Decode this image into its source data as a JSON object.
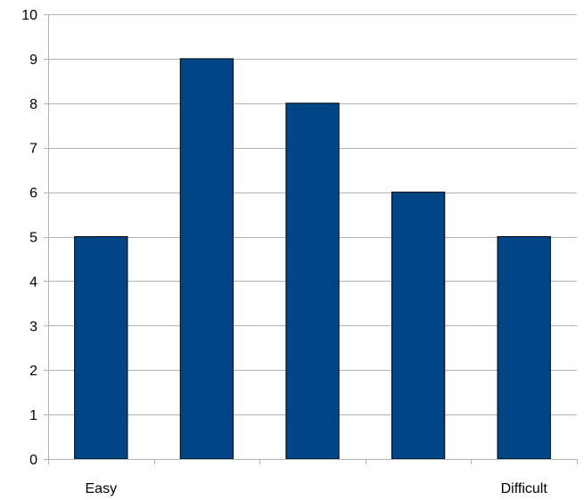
{
  "chart_data": {
    "type": "bar",
    "categories": [
      "Easy",
      "",
      "",
      "",
      "Difficult"
    ],
    "values": [
      5,
      9,
      8,
      6,
      5
    ],
    "title": "",
    "xlabel": "",
    "ylabel": "",
    "ylim": [
      0,
      10
    ],
    "yticks": [
      "0",
      "1",
      "2",
      "3",
      "4",
      "5",
      "6",
      "7",
      "8",
      "9",
      "10"
    ],
    "grid": true,
    "legend": "none",
    "bar_color": "#004586",
    "bar_border_color": "#000000",
    "grid_color": "#b3b3b3",
    "axis_color": "#b3b3b3"
  }
}
